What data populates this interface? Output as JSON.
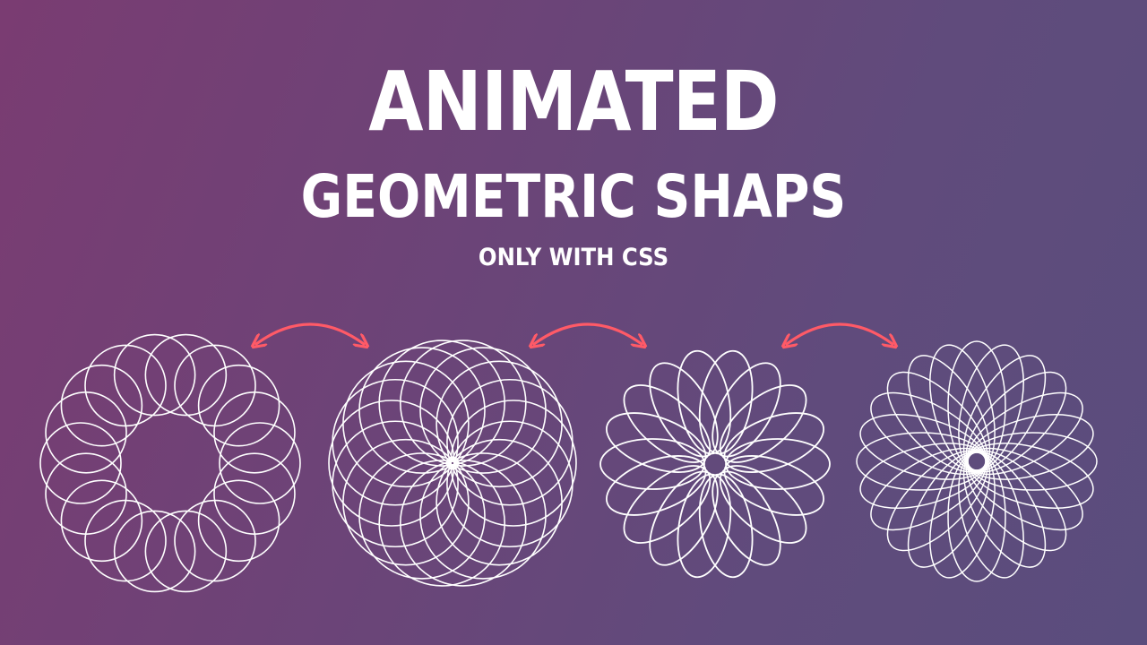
{
  "heading": {
    "line1": "ANIMATED",
    "line2": "GEOMETRIC SHAPS",
    "line3": "ONLY WITH CSS"
  },
  "colors": {
    "stroke": "#ffffff",
    "arrow": "#ff5a67"
  },
  "shapes": [
    {
      "name": "ring-of-circles",
      "petals": 18
    },
    {
      "name": "flower-rosette",
      "petals": 18
    },
    {
      "name": "ellipse-spirograph",
      "petals": 18
    },
    {
      "name": "dense-ellipse-spirograph",
      "petals": 24
    }
  ],
  "arrows": [
    {
      "name": "swap-arrow-1-2"
    },
    {
      "name": "swap-arrow-2-3"
    },
    {
      "name": "swap-arrow-3-4"
    }
  ]
}
